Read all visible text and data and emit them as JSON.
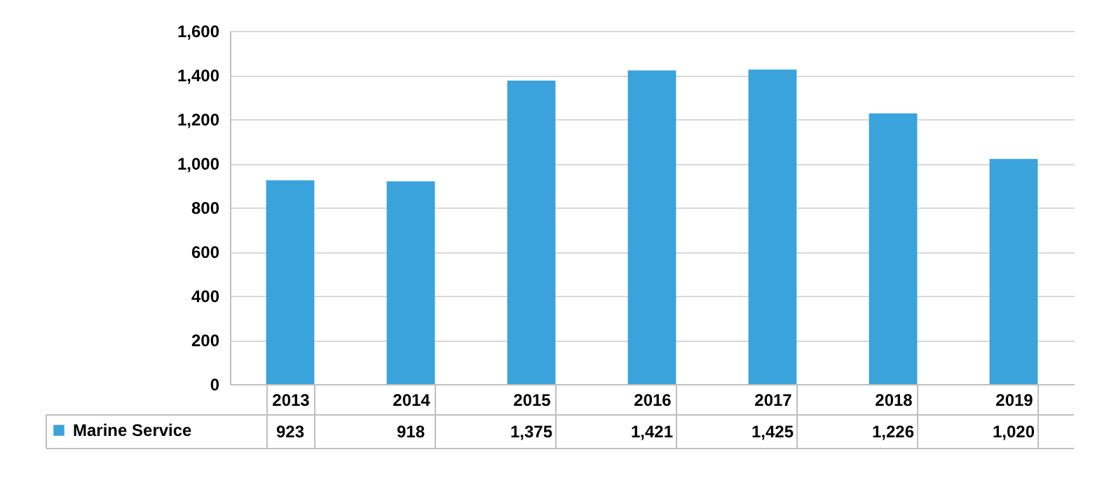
{
  "chart_data": {
    "type": "bar",
    "categories": [
      "2013",
      "2014",
      "2015",
      "2016",
      "2017",
      "2018",
      "2019"
    ],
    "series": [
      {
        "name": "Marine Service",
        "color": "#3ba3db",
        "values": [
          923,
          918,
          1375,
          1421,
          1425,
          1226,
          1020
        ],
        "value_labels": [
          "923",
          "918",
          "1,375",
          "1,421",
          "1,425",
          "1,226",
          "1,020"
        ]
      }
    ],
    "ylim": [
      0,
      1600
    ],
    "yticks": [
      0,
      {
        "value": 200,
        "label": "200"
      },
      {
        "value": 400,
        "label": "400"
      },
      {
        "value": 600,
        "label": "600"
      },
      {
        "value": 800,
        "label": "800"
      },
      {
        "value": 1000,
        "label": "1,000"
      },
      {
        "value": 1200,
        "label": "1,200"
      },
      {
        "value": 1400,
        "label": "1,400"
      },
      {
        "value": 1600,
        "label": "1,600"
      }
    ],
    "grid": "y",
    "legend": "bottom left"
  }
}
